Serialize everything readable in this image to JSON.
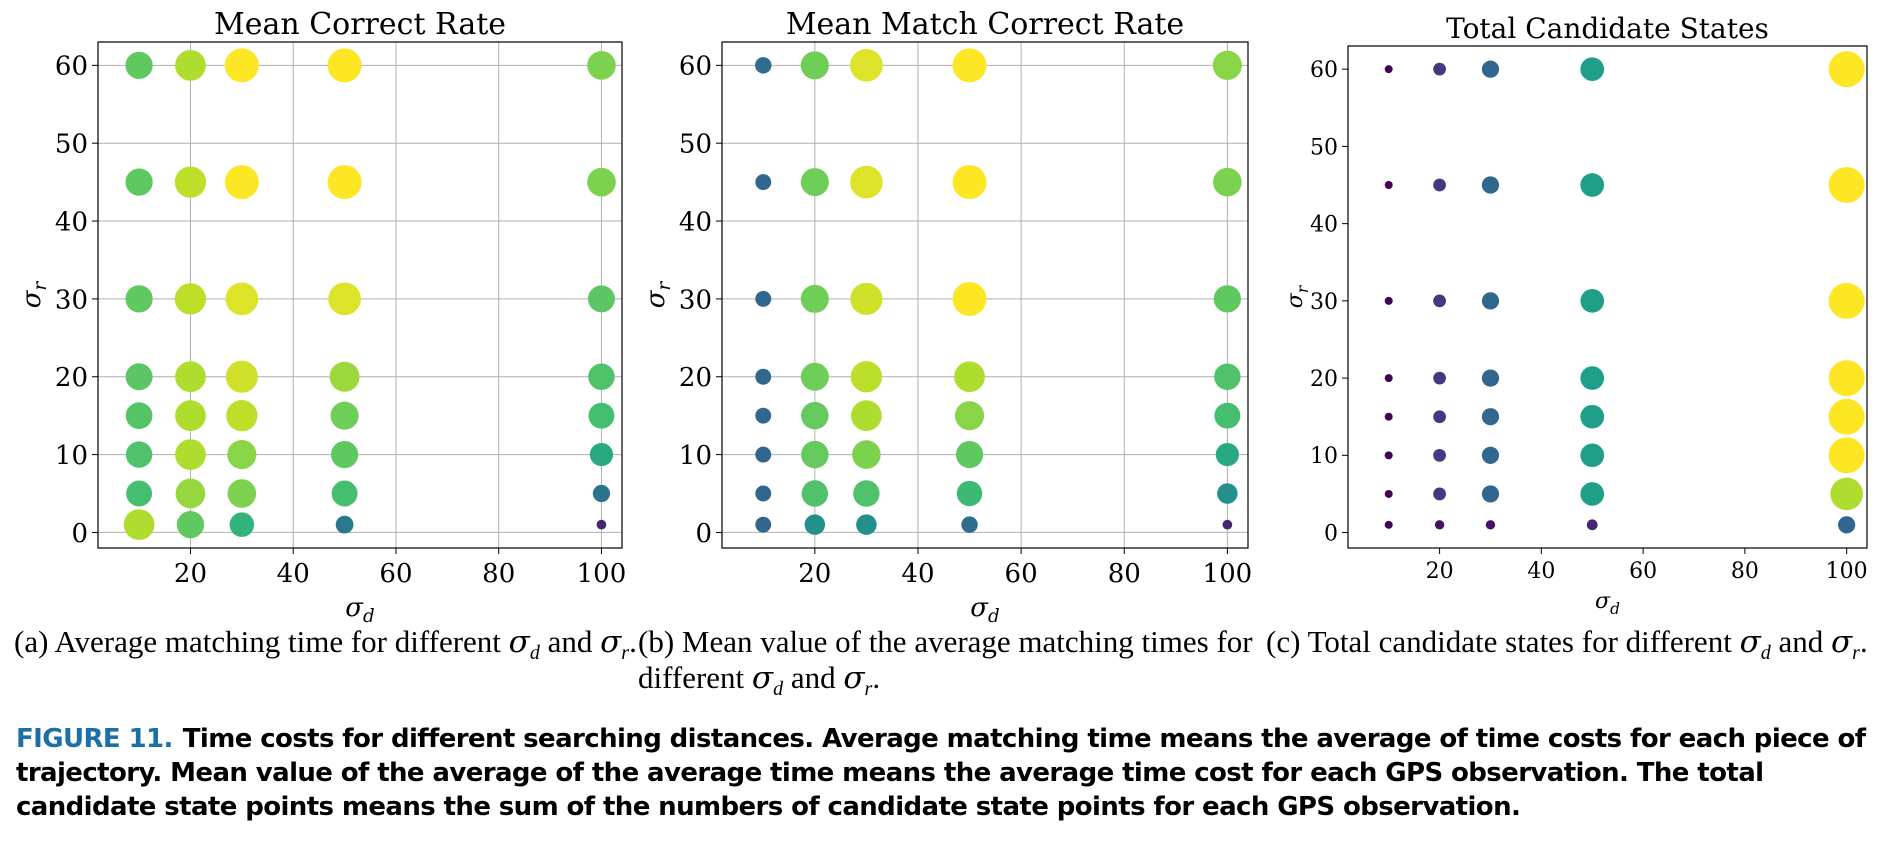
{
  "colors": {
    "grid": "#b0b0b0",
    "viridis": [
      "#440154",
      "#482878",
      "#3e4989",
      "#31688e",
      "#26828e",
      "#1f9e89",
      "#35b779",
      "#6ece58",
      "#b5de2b",
      "#fde725"
    ],
    "figure_label": "#1d6fa6"
  },
  "chart_data": [
    {
      "type": "scatter",
      "title": "Mean Correct Rate",
      "xlabel": "σ",
      "xlabel_sub": "d",
      "ylabel": "σ",
      "ylabel_sub": "r",
      "xlim": [
        2,
        104
      ],
      "ylim": [
        -2,
        63
      ],
      "xticks": [
        20,
        40,
        60,
        80,
        100
      ],
      "yticks": [
        0,
        10,
        20,
        30,
        40,
        50,
        60
      ],
      "grid": true,
      "points": [
        {
          "x": 10,
          "y": 60,
          "v": 0.75
        },
        {
          "x": 20,
          "y": 60,
          "v": 0.88
        },
        {
          "x": 30,
          "y": 60,
          "v": 1.0
        },
        {
          "x": 50,
          "y": 60,
          "v": 1.0
        },
        {
          "x": 100,
          "y": 60,
          "v": 0.8
        },
        {
          "x": 10,
          "y": 45,
          "v": 0.75
        },
        {
          "x": 20,
          "y": 45,
          "v": 0.9
        },
        {
          "x": 30,
          "y": 45,
          "v": 1.0
        },
        {
          "x": 50,
          "y": 45,
          "v": 1.0
        },
        {
          "x": 100,
          "y": 45,
          "v": 0.8
        },
        {
          "x": 10,
          "y": 30,
          "v": 0.75
        },
        {
          "x": 20,
          "y": 30,
          "v": 0.9
        },
        {
          "x": 30,
          "y": 30,
          "v": 0.95
        },
        {
          "x": 50,
          "y": 30,
          "v": 0.95
        },
        {
          "x": 100,
          "y": 30,
          "v": 0.74
        },
        {
          "x": 10,
          "y": 20,
          "v": 0.74
        },
        {
          "x": 20,
          "y": 20,
          "v": 0.88
        },
        {
          "x": 30,
          "y": 20,
          "v": 0.93
        },
        {
          "x": 50,
          "y": 20,
          "v": 0.85
        },
        {
          "x": 100,
          "y": 20,
          "v": 0.72
        },
        {
          "x": 10,
          "y": 15,
          "v": 0.73
        },
        {
          "x": 20,
          "y": 15,
          "v": 0.88
        },
        {
          "x": 30,
          "y": 15,
          "v": 0.9
        },
        {
          "x": 50,
          "y": 15,
          "v": 0.78
        },
        {
          "x": 100,
          "y": 15,
          "v": 0.7
        },
        {
          "x": 10,
          "y": 10,
          "v": 0.72
        },
        {
          "x": 20,
          "y": 10,
          "v": 0.88
        },
        {
          "x": 30,
          "y": 10,
          "v": 0.82
        },
        {
          "x": 50,
          "y": 10,
          "v": 0.75
        },
        {
          "x": 100,
          "y": 10,
          "v": 0.6
        },
        {
          "x": 10,
          "y": 5,
          "v": 0.7
        },
        {
          "x": 20,
          "y": 5,
          "v": 0.84
        },
        {
          "x": 30,
          "y": 5,
          "v": 0.8
        },
        {
          "x": 50,
          "y": 5,
          "v": 0.7
        },
        {
          "x": 100,
          "y": 5,
          "v": 0.38
        },
        {
          "x": 10,
          "y": 1,
          "v": 0.88
        },
        {
          "x": 20,
          "y": 1,
          "v": 0.75
        },
        {
          "x": 30,
          "y": 1,
          "v": 0.65
        },
        {
          "x": 50,
          "y": 1,
          "v": 0.4
        },
        {
          "x": 100,
          "y": 1,
          "v": 0.1
        }
      ]
    },
    {
      "type": "scatter",
      "title": "Mean Match Correct Rate",
      "xlabel": "σ",
      "xlabel_sub": "d",
      "ylabel": "σ",
      "ylabel_sub": "r",
      "xlim": [
        2,
        104
      ],
      "ylim": [
        -2,
        63
      ],
      "xticks": [
        20,
        40,
        60,
        80,
        100
      ],
      "yticks": [
        0,
        10,
        20,
        30,
        40,
        50,
        60
      ],
      "grid": true,
      "points": [
        {
          "x": 10,
          "y": 60,
          "v": 0.35
        },
        {
          "x": 20,
          "y": 60,
          "v": 0.78
        },
        {
          "x": 30,
          "y": 60,
          "v": 0.95
        },
        {
          "x": 50,
          "y": 60,
          "v": 1.0
        },
        {
          "x": 100,
          "y": 60,
          "v": 0.82
        },
        {
          "x": 10,
          "y": 45,
          "v": 0.33
        },
        {
          "x": 20,
          "y": 45,
          "v": 0.78
        },
        {
          "x": 30,
          "y": 45,
          "v": 0.95
        },
        {
          "x": 50,
          "y": 45,
          "v": 1.0
        },
        {
          "x": 100,
          "y": 45,
          "v": 0.8
        },
        {
          "x": 10,
          "y": 30,
          "v": 0.33
        },
        {
          "x": 20,
          "y": 30,
          "v": 0.78
        },
        {
          "x": 30,
          "y": 30,
          "v": 0.93
        },
        {
          "x": 50,
          "y": 30,
          "v": 1.0
        },
        {
          "x": 100,
          "y": 30,
          "v": 0.75
        },
        {
          "x": 10,
          "y": 20,
          "v": 0.33
        },
        {
          "x": 20,
          "y": 20,
          "v": 0.78
        },
        {
          "x": 30,
          "y": 20,
          "v": 0.9
        },
        {
          "x": 50,
          "y": 20,
          "v": 0.88
        },
        {
          "x": 100,
          "y": 20,
          "v": 0.72
        },
        {
          "x": 10,
          "y": 15,
          "v": 0.33
        },
        {
          "x": 20,
          "y": 15,
          "v": 0.76
        },
        {
          "x": 30,
          "y": 15,
          "v": 0.88
        },
        {
          "x": 50,
          "y": 15,
          "v": 0.82
        },
        {
          "x": 100,
          "y": 15,
          "v": 0.7
        },
        {
          "x": 10,
          "y": 10,
          "v": 0.33
        },
        {
          "x": 20,
          "y": 10,
          "v": 0.76
        },
        {
          "x": 30,
          "y": 10,
          "v": 0.8
        },
        {
          "x": 50,
          "y": 10,
          "v": 0.75
        },
        {
          "x": 100,
          "y": 10,
          "v": 0.6
        },
        {
          "x": 10,
          "y": 5,
          "v": 0.33
        },
        {
          "x": 20,
          "y": 5,
          "v": 0.72
        },
        {
          "x": 30,
          "y": 5,
          "v": 0.72
        },
        {
          "x": 50,
          "y": 5,
          "v": 0.68
        },
        {
          "x": 100,
          "y": 5,
          "v": 0.5
        },
        {
          "x": 10,
          "y": 1,
          "v": 0.33
        },
        {
          "x": 20,
          "y": 1,
          "v": 0.5
        },
        {
          "x": 30,
          "y": 1,
          "v": 0.5
        },
        {
          "x": 50,
          "y": 1,
          "v": 0.35
        },
        {
          "x": 100,
          "y": 1,
          "v": 0.1
        }
      ]
    },
    {
      "type": "scatter",
      "title": "Total Candidate States",
      "xlabel": "σ",
      "xlabel_sub": "d",
      "ylabel": "σ",
      "ylabel_sub": "r",
      "xlim": [
        2,
        104
      ],
      "ylim": [
        -2,
        63
      ],
      "xticks": [
        20,
        40,
        60,
        80,
        100
      ],
      "yticks": [
        0,
        10,
        20,
        30,
        40,
        50,
        60
      ],
      "grid": false,
      "points": [
        {
          "x": 10,
          "y": 60,
          "v": 0.0
        },
        {
          "x": 20,
          "y": 60,
          "v": 0.17
        },
        {
          "x": 30,
          "y": 60,
          "v": 0.33
        },
        {
          "x": 50,
          "y": 60,
          "v": 0.56
        },
        {
          "x": 100,
          "y": 60,
          "v": 1.0
        },
        {
          "x": 10,
          "y": 45,
          "v": 0.0
        },
        {
          "x": 20,
          "y": 45,
          "v": 0.17
        },
        {
          "x": 30,
          "y": 45,
          "v": 0.33
        },
        {
          "x": 50,
          "y": 45,
          "v": 0.56
        },
        {
          "x": 100,
          "y": 45,
          "v": 1.0
        },
        {
          "x": 10,
          "y": 30,
          "v": 0.0
        },
        {
          "x": 20,
          "y": 30,
          "v": 0.17
        },
        {
          "x": 30,
          "y": 30,
          "v": 0.33
        },
        {
          "x": 50,
          "y": 30,
          "v": 0.56
        },
        {
          "x": 100,
          "y": 30,
          "v": 1.0
        },
        {
          "x": 10,
          "y": 20,
          "v": 0.0
        },
        {
          "x": 20,
          "y": 20,
          "v": 0.17
        },
        {
          "x": 30,
          "y": 20,
          "v": 0.33
        },
        {
          "x": 50,
          "y": 20,
          "v": 0.56
        },
        {
          "x": 100,
          "y": 20,
          "v": 1.0
        },
        {
          "x": 10,
          "y": 15,
          "v": 0.0
        },
        {
          "x": 20,
          "y": 15,
          "v": 0.17
        },
        {
          "x": 30,
          "y": 15,
          "v": 0.33
        },
        {
          "x": 50,
          "y": 15,
          "v": 0.56
        },
        {
          "x": 100,
          "y": 15,
          "v": 1.0
        },
        {
          "x": 10,
          "y": 10,
          "v": 0.0
        },
        {
          "x": 20,
          "y": 10,
          "v": 0.17
        },
        {
          "x": 30,
          "y": 10,
          "v": 0.33
        },
        {
          "x": 50,
          "y": 10,
          "v": 0.56
        },
        {
          "x": 100,
          "y": 10,
          "v": 1.0
        },
        {
          "x": 10,
          "y": 5,
          "v": 0.0
        },
        {
          "x": 20,
          "y": 5,
          "v": 0.17
        },
        {
          "x": 30,
          "y": 5,
          "v": 0.33
        },
        {
          "x": 50,
          "y": 5,
          "v": 0.56
        },
        {
          "x": 100,
          "y": 5,
          "v": 0.88
        },
        {
          "x": 10,
          "y": 1,
          "v": 0.0
        },
        {
          "x": 20,
          "y": 1,
          "v": 0.05
        },
        {
          "x": 30,
          "y": 1,
          "v": 0.05
        },
        {
          "x": 50,
          "y": 1,
          "v": 0.1
        },
        {
          "x": 100,
          "y": 1,
          "v": 0.33
        }
      ]
    }
  ],
  "subcaptions": [
    {
      "label": "(a)",
      "text1": "Average matching time for different",
      "sym1": "σ",
      "sub1": "d",
      "text2": "and",
      "sym2": "σ",
      "sub2": "r",
      "end": "."
    },
    {
      "label": "(b)",
      "text1": "Mean value of the average matching times for different",
      "sym1": "σ",
      "sub1": "d",
      "text2": "and",
      "sym2": "σ",
      "sub2": "r",
      "end": "."
    },
    {
      "label": "(c)",
      "text1": "Total candidate states for different",
      "sym1": "σ",
      "sub1": "d",
      "text2": "and",
      "sym2": "σ",
      "sub2": "r",
      "end": "."
    }
  ],
  "figure_caption": {
    "label": "FIGURE 11.",
    "text": "Time costs for different searching distances. Average matching time means the average of time costs for each piece of trajectory. Mean value of the average of the average time means the average time cost for each GPS observation. The total candidate state points means the sum of the numbers of candidate state points for each GPS observation."
  }
}
